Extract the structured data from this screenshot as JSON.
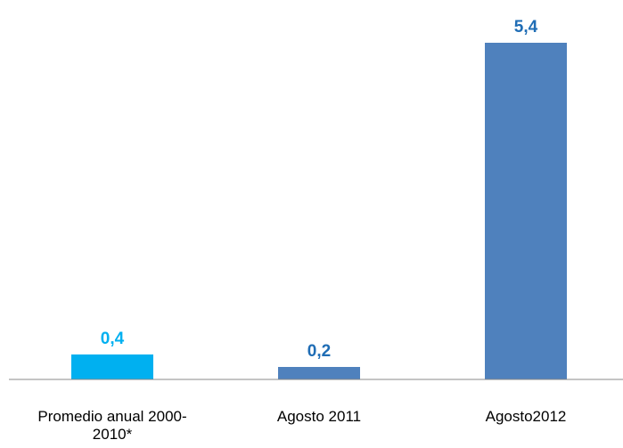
{
  "chart_data": {
    "type": "bar",
    "categories": [
      "Promedio anual 2000-2010*",
      "Agosto 2011",
      "Agosto2012"
    ],
    "values": [
      0.4,
      0.2,
      5.4
    ],
    "value_labels": [
      "0,4",
      "0,2",
      "5,4"
    ],
    "colors": [
      "#00b0f0",
      "#4f81bd",
      "#4f81bd"
    ],
    "label_colors": [
      "#00b0f0",
      "#1f6db5",
      "#1f6db5"
    ]
  }
}
